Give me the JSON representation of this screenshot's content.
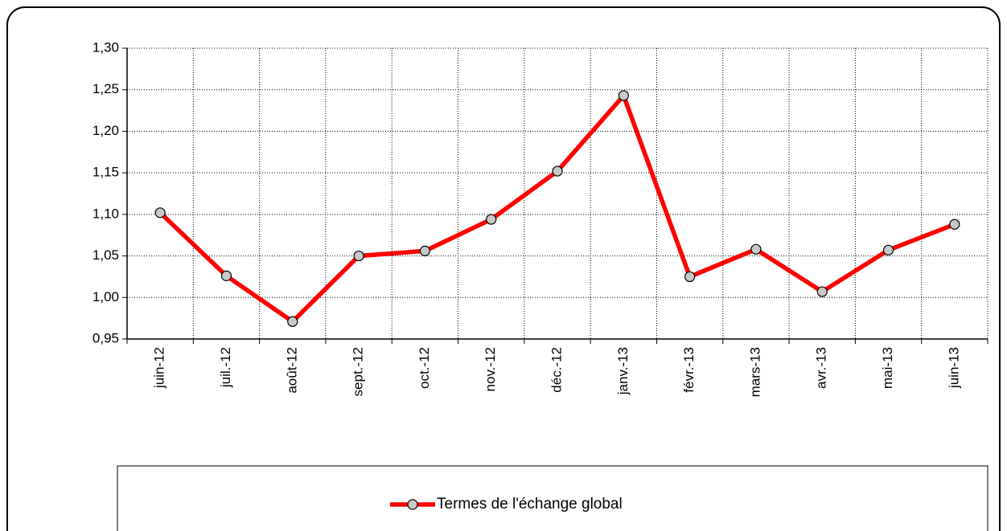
{
  "chart_data": {
    "type": "line",
    "categories": [
      "juin-12",
      "juil.-12",
      "août-12",
      "sept.-12",
      "oct.-12",
      "nov.-12",
      "déc.-12",
      "janv.-13",
      "févr.-13",
      "mars-13",
      "avr.-13",
      "mai-13",
      "juin-13"
    ],
    "series": [
      {
        "name": "Termes de l'échange global",
        "color": "#ff0000",
        "values": [
          1.102,
          1.026,
          0.971,
          1.05,
          1.056,
          1.094,
          1.152,
          1.243,
          1.025,
          1.058,
          1.007,
          1.057,
          1.088
        ]
      }
    ],
    "ylim": [
      0.95,
      1.3
    ],
    "yticks": [
      {
        "value": 0.95,
        "label": "0,95"
      },
      {
        "value": 1.0,
        "label": "1,00"
      },
      {
        "value": 1.05,
        "label": "1,05"
      },
      {
        "value": 1.1,
        "label": "1,10"
      },
      {
        "value": 1.15,
        "label": "1,15"
      },
      {
        "value": 1.2,
        "label": "1,20"
      },
      {
        "value": 1.25,
        "label": "1,25"
      },
      {
        "value": 1.3,
        "label": "1,30"
      }
    ],
    "grid": true,
    "legend": "bottom"
  }
}
